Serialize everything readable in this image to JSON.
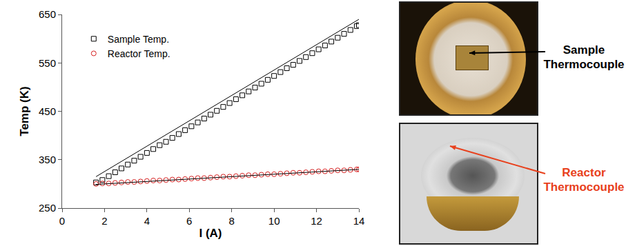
{
  "chart_data": {
    "type": "scatter",
    "x_label": "I (A)",
    "y_label": "Temp (K)",
    "xlim": [
      0,
      14
    ],
    "xticks": [
      0,
      2,
      4,
      6,
      8,
      10,
      12,
      14
    ],
    "ylim": [
      250,
      650
    ],
    "yticks": [
      250,
      350,
      450,
      550,
      650
    ],
    "legend": "upper left",
    "grid": false,
    "series": [
      {
        "name": "Sample Temp.",
        "type": "scatter",
        "marker": "square-open",
        "color": "#000000",
        "x": [
          1.6,
          1.9,
          2.2,
          2.5,
          2.8,
          3.1,
          3.4,
          3.7,
          4.0,
          4.3,
          4.6,
          4.9,
          5.2,
          5.5,
          5.8,
          6.1,
          6.4,
          6.7,
          7.0,
          7.3,
          7.6,
          7.9,
          8.2,
          8.5,
          8.8,
          9.1,
          9.4,
          9.7,
          10.0,
          10.3,
          10.6,
          10.9,
          11.2,
          11.5,
          11.8,
          12.1,
          12.4,
          12.7,
          13.0,
          13.3,
          13.6,
          13.9,
          14.0
        ],
        "values": [
          303,
          308,
          316,
          324,
          332,
          340,
          348,
          356,
          364,
          372,
          380,
          387,
          395,
          403,
          411,
          419,
          427,
          435,
          443,
          451,
          459,
          467,
          475,
          483,
          491,
          499,
          507,
          515,
          523,
          531,
          539,
          546,
          554,
          562,
          570,
          578,
          586,
          594,
          602,
          610,
          618,
          626,
          628
        ]
      },
      {
        "name": "Reactor Temp.",
        "type": "scatter",
        "marker": "circle-open",
        "color": "#d62020",
        "x": [
          1.6,
          1.9,
          2.2,
          2.5,
          2.8,
          3.1,
          3.4,
          3.7,
          4.0,
          4.3,
          4.6,
          4.9,
          5.2,
          5.5,
          5.8,
          6.1,
          6.4,
          6.7,
          7.0,
          7.3,
          7.6,
          7.9,
          8.2,
          8.5,
          8.8,
          9.1,
          9.4,
          9.7,
          10.0,
          10.3,
          10.6,
          10.9,
          11.2,
          11.5,
          11.8,
          12.1,
          12.4,
          12.7,
          13.0,
          13.3,
          13.6,
          13.9,
          14.0
        ],
        "values": [
          300,
          301,
          301,
          302,
          303,
          304,
          304,
          305,
          306,
          307,
          307,
          308,
          309,
          309,
          310,
          311,
          312,
          312,
          313,
          314,
          315,
          315,
          316,
          317,
          318,
          318,
          319,
          320,
          320,
          321,
          322,
          323,
          323,
          324,
          325,
          326,
          326,
          327,
          328,
          328,
          329,
          330,
          330
        ]
      },
      {
        "type": "line",
        "line_style": "solid",
        "color": "#000000",
        "x": [
          1.6,
          14.0
        ],
        "values": [
          315,
          640
        ]
      },
      {
        "type": "line",
        "line_style": "solid",
        "color": "#000000",
        "x": [
          1.6,
          14.0
        ],
        "values": [
          299,
          330
        ]
      }
    ]
  },
  "photos": [
    {
      "label": "Sample Thermocouple",
      "color": "#000000"
    },
    {
      "label": "Reactor Thermocouple",
      "color": "#e8401c"
    }
  ]
}
